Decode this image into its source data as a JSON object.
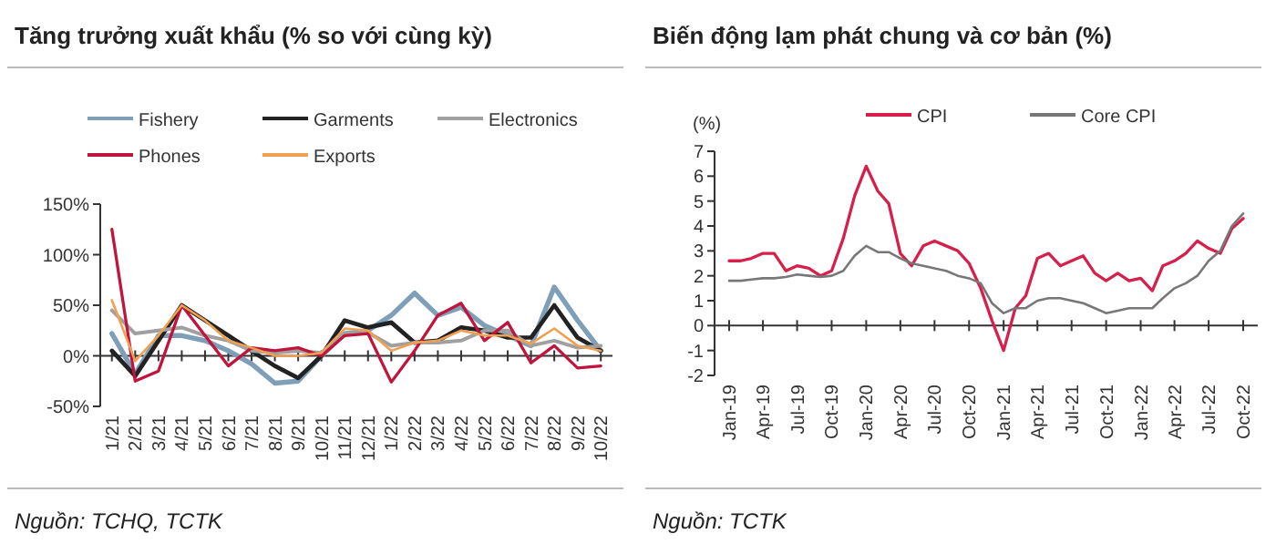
{
  "chart_data": [
    {
      "type": "line",
      "title": "Tăng trưởng xuất khẩu (% so với cùng kỳ)",
      "categories": [
        "1/21",
        "2/21",
        "3/21",
        "4/21",
        "5/21",
        "6/21",
        "7/21",
        "8/21",
        "9/21",
        "10/21",
        "11/21",
        "12/21",
        "1/22",
        "2/22",
        "3/22",
        "4/22",
        "5/22",
        "6/22",
        "7/22",
        "8/22",
        "9/22",
        "10/22"
      ],
      "series": [
        {
          "name": "Fishery",
          "color": "#7f9fb8",
          "values": [
            22,
            -18,
            20,
            20,
            15,
            5,
            -8,
            -27,
            -25,
            0,
            22,
            25,
            40,
            62,
            40,
            48,
            30,
            20,
            10,
            68,
            35,
            5
          ]
        },
        {
          "name": "Garments",
          "color": "#222222",
          "values": [
            5,
            -20,
            15,
            50,
            35,
            20,
            5,
            -10,
            -22,
            0,
            35,
            28,
            33,
            13,
            15,
            28,
            25,
            18,
            18,
            50,
            18,
            5
          ]
        },
        {
          "name": "Electronics",
          "color": "#a0a0a0",
          "values": [
            45,
            22,
            25,
            28,
            20,
            15,
            5,
            3,
            5,
            3,
            22,
            23,
            10,
            13,
            13,
            15,
            25,
            25,
            10,
            15,
            8,
            10
          ]
        },
        {
          "name": "Phones",
          "color": "#c0143c",
          "values": [
            125,
            -25,
            -15,
            50,
            20,
            -10,
            8,
            5,
            8,
            0,
            20,
            22,
            -26,
            5,
            40,
            52,
            15,
            33,
            -7,
            10,
            -12,
            -10
          ]
        },
        {
          "name": "Exports",
          "color": "#f0a050",
          "values": [
            55,
            -5,
            20,
            50,
            35,
            15,
            8,
            0,
            0,
            3,
            27,
            25,
            5,
            13,
            15,
            25,
            20,
            20,
            12,
            27,
            10,
            5
          ]
        }
      ],
      "ylim": [
        -50,
        150
      ],
      "yticks": [
        {
          "value": -50,
          "label": "-50%"
        },
        {
          "value": 0,
          "label": "0%"
        },
        {
          "value": 50,
          "label": "50%"
        },
        {
          "value": 100,
          "label": "100%"
        },
        {
          "value": 150,
          "label": "150%"
        }
      ],
      "legend": "top",
      "annotations": [
        "Nguồn: TCHQ, TCTK"
      ]
    },
    {
      "type": "line",
      "title": "Biến động lạm phát chung và cơ bản (%)",
      "ylabel": "(%)",
      "x": [
        "2019-01",
        "2019-02",
        "2019-03",
        "2019-04",
        "2019-05",
        "2019-06",
        "2019-07",
        "2019-08",
        "2019-09",
        "2019-10",
        "2019-11",
        "2019-12",
        "2020-01",
        "2020-02",
        "2020-03",
        "2020-04",
        "2020-05",
        "2020-06",
        "2020-07",
        "2020-08",
        "2020-09",
        "2020-10",
        "2020-11",
        "2020-12",
        "2021-01",
        "2021-02",
        "2021-03",
        "2021-04",
        "2021-05",
        "2021-06",
        "2021-07",
        "2021-08",
        "2021-09",
        "2021-10",
        "2021-11",
        "2021-12",
        "2022-01",
        "2022-02",
        "2022-03",
        "2022-04",
        "2022-05",
        "2022-06",
        "2022-07",
        "2022-08",
        "2022-09",
        "2022-10"
      ],
      "series": [
        {
          "name": "CPI",
          "color": "#d6204b",
          "values": [
            2.6,
            2.6,
            2.7,
            2.9,
            2.9,
            2.2,
            2.4,
            2.3,
            2.0,
            2.2,
            3.5,
            5.2,
            6.4,
            5.4,
            4.9,
            2.9,
            2.4,
            3.2,
            3.4,
            3.2,
            3.0,
            2.5,
            1.5,
            0.2,
            -1.0,
            0.7,
            1.2,
            2.7,
            2.9,
            2.4,
            2.6,
            2.8,
            2.1,
            1.8,
            2.1,
            1.8,
            1.9,
            1.4,
            2.4,
            2.6,
            2.9,
            3.4,
            3.1,
            2.9,
            3.9,
            4.3
          ]
        },
        {
          "name": "Core CPI",
          "color": "#777777",
          "values": [
            1.8,
            1.8,
            1.85,
            1.9,
            1.9,
            1.95,
            2.05,
            2.0,
            1.95,
            2.0,
            2.2,
            2.8,
            3.2,
            2.95,
            2.95,
            2.7,
            2.5,
            2.4,
            2.3,
            2.2,
            2.0,
            1.9,
            1.7,
            0.9,
            0.5,
            0.7,
            0.7,
            1.0,
            1.1,
            1.1,
            1.0,
            0.9,
            0.7,
            0.5,
            0.6,
            0.7,
            0.7,
            0.7,
            1.1,
            1.5,
            1.7,
            2.0,
            2.6,
            3.0,
            4.0,
            4.5
          ]
        }
      ],
      "xlim": [
        "2019-01",
        "2022-10"
      ],
      "xticks": [
        {
          "value": "2019-01",
          "label": "Jan-19"
        },
        {
          "value": "2019-04",
          "label": "Apr-19"
        },
        {
          "value": "2019-07",
          "label": "Jul-19"
        },
        {
          "value": "2019-10",
          "label": "Oct-19"
        },
        {
          "value": "2020-01",
          "label": "Jan-20"
        },
        {
          "value": "2020-04",
          "label": "Apr-20"
        },
        {
          "value": "2020-07",
          "label": "Jul-20"
        },
        {
          "value": "2020-10",
          "label": "Oct-20"
        },
        {
          "value": "2021-01",
          "label": "Jan-21"
        },
        {
          "value": "2021-04",
          "label": "Apr-21"
        },
        {
          "value": "2021-07",
          "label": "Jul-21"
        },
        {
          "value": "2021-10",
          "label": "Oct-21"
        },
        {
          "value": "2022-01",
          "label": "Jan-22"
        },
        {
          "value": "2022-04",
          "label": "Apr-22"
        },
        {
          "value": "2022-07",
          "label": "Jul-22"
        },
        {
          "value": "2022-10",
          "label": "Oct-22"
        }
      ],
      "ylim": [
        -2,
        7
      ],
      "yticks": [
        -2,
        -1,
        0,
        1,
        2,
        3,
        4,
        5,
        6,
        7
      ],
      "legend": "top",
      "annotations": [
        "Nguồn: TCTK"
      ]
    }
  ]
}
